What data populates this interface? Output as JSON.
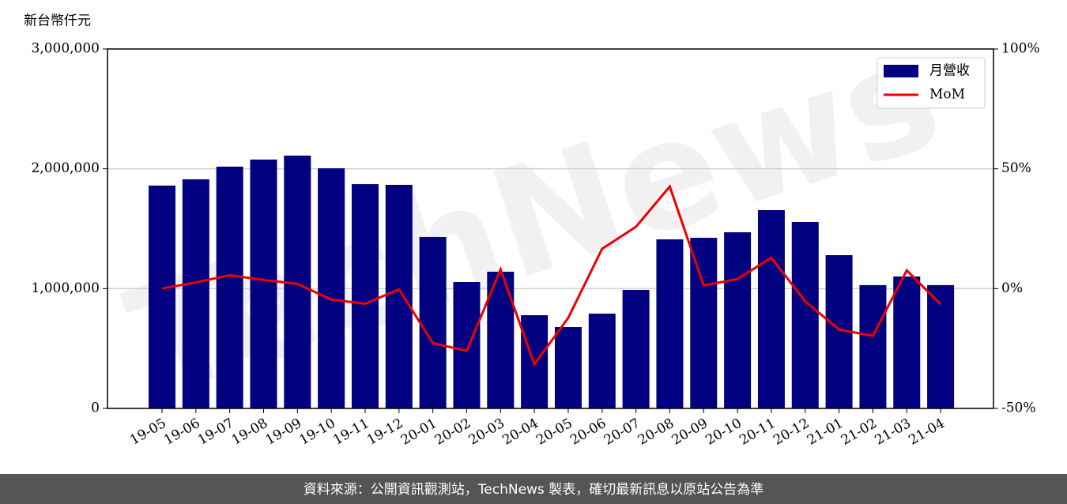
{
  "chart_data": {
    "type": "bar_line",
    "ylabel": "新台幣仟元",
    "watermark": "TechNews",
    "footer": "資料來源：公開資訊觀測站，TechNews 製表，確切最新訊息以原站公告為準",
    "categories": [
      "19-05",
      "19-06",
      "19-07",
      "19-08",
      "19-09",
      "19-10",
      "19-11",
      "19-12",
      "20-01",
      "20-02",
      "20-03",
      "20-04",
      "20-05",
      "20-06",
      "20-07",
      "20-08",
      "20-09",
      "20-10",
      "20-11",
      "20-12",
      "21-01",
      "21-02",
      "21-03",
      "21-04"
    ],
    "series": [
      {
        "name": "月營收",
        "type": "bar",
        "color": "#000080",
        "values": [
          1860000,
          1912000,
          2018000,
          2077000,
          2110000,
          2004000,
          1872000,
          1866000,
          1431000,
          1055000,
          1141000,
          778000,
          679000,
          791000,
          989000,
          1411000,
          1424000,
          1470000,
          1655000,
          1556000,
          1279000,
          1029000,
          1101000,
          1029000
        ]
      },
      {
        "name": "MoM",
        "type": "line",
        "axis": "y2",
        "color": "#ee0000",
        "values": [
          0,
          2.6,
          5.6,
          3.6,
          2,
          -4.6,
          -6.3,
          -0.3,
          -22.7,
          -26,
          8,
          -31.6,
          -12.2,
          16.6,
          25.8,
          42.6,
          1.3,
          4,
          12.9,
          -5.3,
          -17.1,
          -19.7,
          7.6,
          -6.5
        ]
      }
    ],
    "ylim": [
      0,
      3000000
    ],
    "yticks": [
      0,
      {
        "value": 1000000,
        "label": "1,000,000"
      },
      {
        "value": 2000000,
        "label": "2,000,000"
      },
      {
        "value": 3000000,
        "label": "3,000,000"
      }
    ],
    "y2lim": [
      -50,
      100
    ],
    "y2ticks": [
      {
        "value": -50,
        "label": "-50%"
      },
      {
        "value": 0,
        "label": "0%"
      },
      {
        "value": 50,
        "label": "50%"
      },
      {
        "value": 100,
        "label": "100%"
      }
    ],
    "grid": true,
    "legend": "upper right"
  }
}
